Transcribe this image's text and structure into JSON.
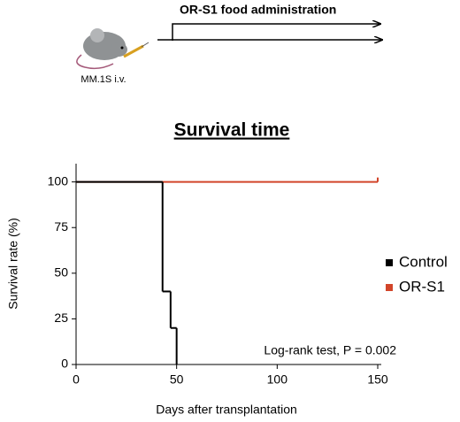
{
  "chart_data": {
    "type": "step",
    "schematic": {
      "label": "OR-S1 food administration",
      "injection": "MM.1S i.v."
    },
    "title": "Survival time",
    "x_label": "Days after transplantation",
    "y_label": "Survival rate (%)",
    "annotation": "Log-rank test, P = 0.002",
    "xlim": [
      0,
      150
    ],
    "xticks": [
      0,
      50,
      100,
      150
    ],
    "ylim": [
      0,
      110
    ],
    "yticks": [
      0,
      25,
      50,
      75,
      100
    ],
    "legend": "right",
    "series": [
      {
        "name": "OR-S1",
        "color": "#d2452a",
        "x": [
          0,
          150
        ],
        "values": [
          100,
          100
        ]
      },
      {
        "name": "Control",
        "color": "#000000",
        "x": [
          0,
          43,
          47,
          50
        ],
        "values": [
          100,
          40,
          20,
          0
        ]
      }
    ]
  }
}
